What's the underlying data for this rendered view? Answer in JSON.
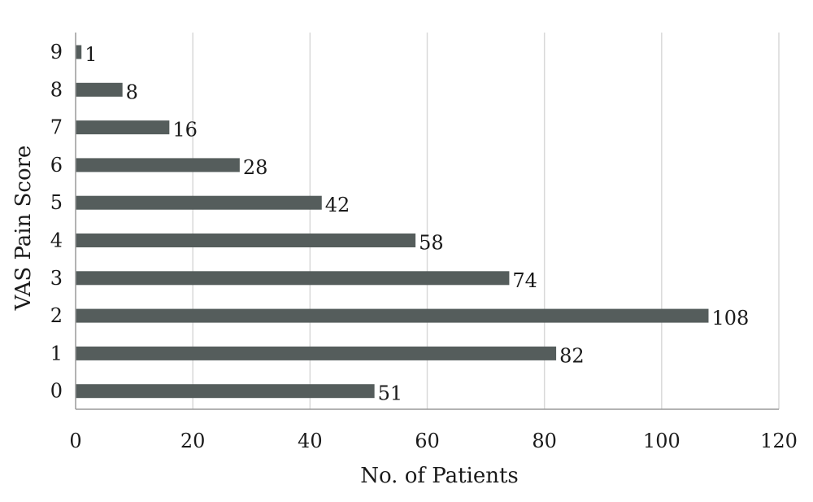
{
  "chart_data": {
    "type": "bar",
    "orientation": "horizontal",
    "title": "",
    "xlabel": "No. of Patients",
    "ylabel": "VAS Pain Score",
    "categories": [
      "0",
      "1",
      "2",
      "3",
      "4",
      "5",
      "6",
      "7",
      "8",
      "9"
    ],
    "values": [
      51,
      82,
      108,
      74,
      58,
      42,
      28,
      16,
      8,
      1
    ],
    "xlim": [
      0,
      120
    ],
    "xticks": [
      0,
      20,
      40,
      60,
      80,
      100,
      120
    ],
    "grid": "vertical",
    "legend": "none",
    "bar_color": "#555d5c"
  }
}
